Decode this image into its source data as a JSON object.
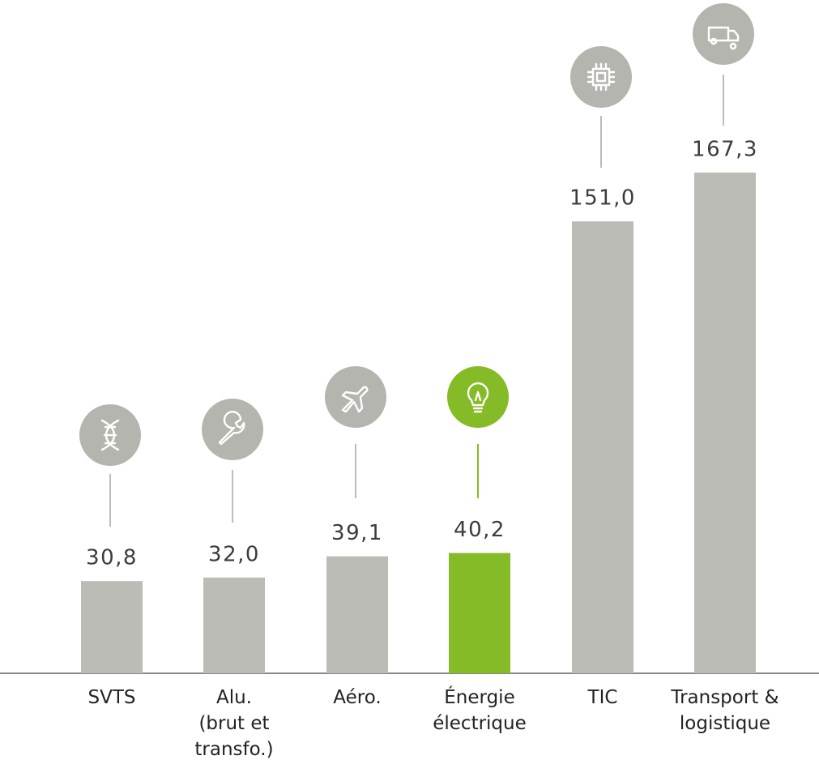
{
  "chart_data": {
    "type": "bar",
    "categories": [
      [
        "SVTS"
      ],
      [
        "Alu.",
        "(brut et",
        "transfo.)"
      ],
      [
        "Aéro."
      ],
      [
        "Énergie",
        "électrique"
      ],
      [
        "TIC"
      ],
      [
        "Transport &",
        "logistique"
      ]
    ],
    "values": [
      30.8,
      32.0,
      39.1,
      40.2,
      151.0,
      167.3
    ],
    "value_labels": [
      "30,8",
      "32,0",
      "39,1",
      "40,2",
      "151,0",
      "167,3"
    ],
    "colors": [
      "#bcbcb6",
      "#bcbcb6",
      "#bcbcb6",
      "#84bb26",
      "#bcbcb6",
      "#bcbcb6"
    ]
  }
}
